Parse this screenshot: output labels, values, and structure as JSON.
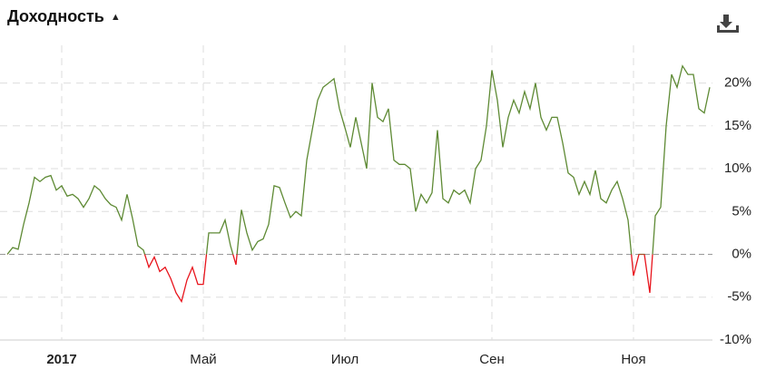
{
  "chart_data": {
    "type": "line",
    "title": "Доходность",
    "title_icon": "▲",
    "categories": [
      null,
      null,
      null,
      null,
      null,
      null,
      null,
      null,
      null,
      null,
      "2017",
      null,
      null,
      null,
      null,
      null,
      null,
      null,
      null,
      null,
      null,
      null,
      null,
      null,
      null,
      null,
      null,
      null,
      null,
      null,
      null,
      null,
      null,
      null,
      null,
      null,
      "Май",
      null,
      null,
      null,
      null,
      null,
      null,
      null,
      null,
      null,
      null,
      null,
      null,
      null,
      null,
      null,
      null,
      null,
      null,
      null,
      null,
      null,
      null,
      null,
      null,
      null,
      "Июл",
      null,
      null,
      null,
      null,
      null,
      null,
      null,
      null,
      null,
      null,
      null,
      null,
      null,
      null,
      null,
      null,
      null,
      null,
      null,
      null,
      null,
      null,
      null,
      null,
      null,
      null,
      "Сен",
      null,
      null,
      null,
      null,
      null,
      null,
      null,
      null,
      null,
      null,
      null,
      null,
      null,
      null,
      null,
      null,
      null,
      null,
      null,
      null,
      null,
      null,
      null,
      null,
      null,
      "Ноя",
      null,
      null,
      null,
      null,
      null,
      null,
      null,
      null,
      null,
      null,
      null,
      null,
      null,
      null
    ],
    "series": [
      {
        "color": "#5e8a34",
        "negative_color": "#e8141c",
        "values": [
          0,
          0.8,
          0.6,
          3.5,
          6,
          9,
          8.5,
          9,
          9.2,
          7.5,
          8,
          6.8,
          7,
          6.5,
          5.5,
          6.5,
          8,
          7.5,
          6.5,
          5.8,
          5.5,
          4,
          7,
          4.2,
          1,
          0.5,
          -1.5,
          -0.3,
          -2,
          -1.5,
          -2.8,
          -4.5,
          -5.5,
          -3,
          -1.5,
          -3.5,
          -3.5,
          2.5,
          2.5,
          2.5,
          4,
          1,
          -1.2,
          5.2,
          2.5,
          0.5,
          1.5,
          1.8,
          3.5,
          8,
          7.8,
          6,
          4.3,
          5,
          4.5,
          11,
          14.5,
          18,
          19.5,
          20,
          20.5,
          17,
          14.8,
          12.5,
          16,
          13,
          10,
          20,
          16,
          15.5,
          17,
          11,
          10.5,
          10.5,
          10,
          5,
          7,
          6,
          7.2,
          14.5,
          6.5,
          6,
          7.5,
          7,
          7.5,
          6,
          10,
          11,
          15,
          21.5,
          18,
          12.5,
          16,
          18,
          16.5,
          19,
          17,
          20,
          16,
          14.5,
          16,
          16,
          13,
          9.5,
          9,
          7,
          8.5,
          7,
          9.8,
          6.5,
          6,
          7.5,
          8.5,
          6.5,
          4,
          -2.5,
          0,
          0,
          -4.5,
          4.5,
          5.5,
          15,
          21,
          19.5,
          22,
          21,
          21,
          17,
          16.5,
          19.5
        ]
      }
    ],
    "ylim": [
      -10,
      24.4
    ],
    "yticks": [
      {
        "value": -10,
        "label": "-10%"
      },
      {
        "value": -5,
        "label": "-5%"
      },
      {
        "value": 0,
        "label": "0%"
      },
      {
        "value": 5,
        "label": "5%"
      },
      {
        "value": 10,
        "label": "10%"
      },
      {
        "value": 15,
        "label": "15%"
      },
      {
        "value": 20,
        "label": "20%"
      }
    ],
    "grid": true
  }
}
